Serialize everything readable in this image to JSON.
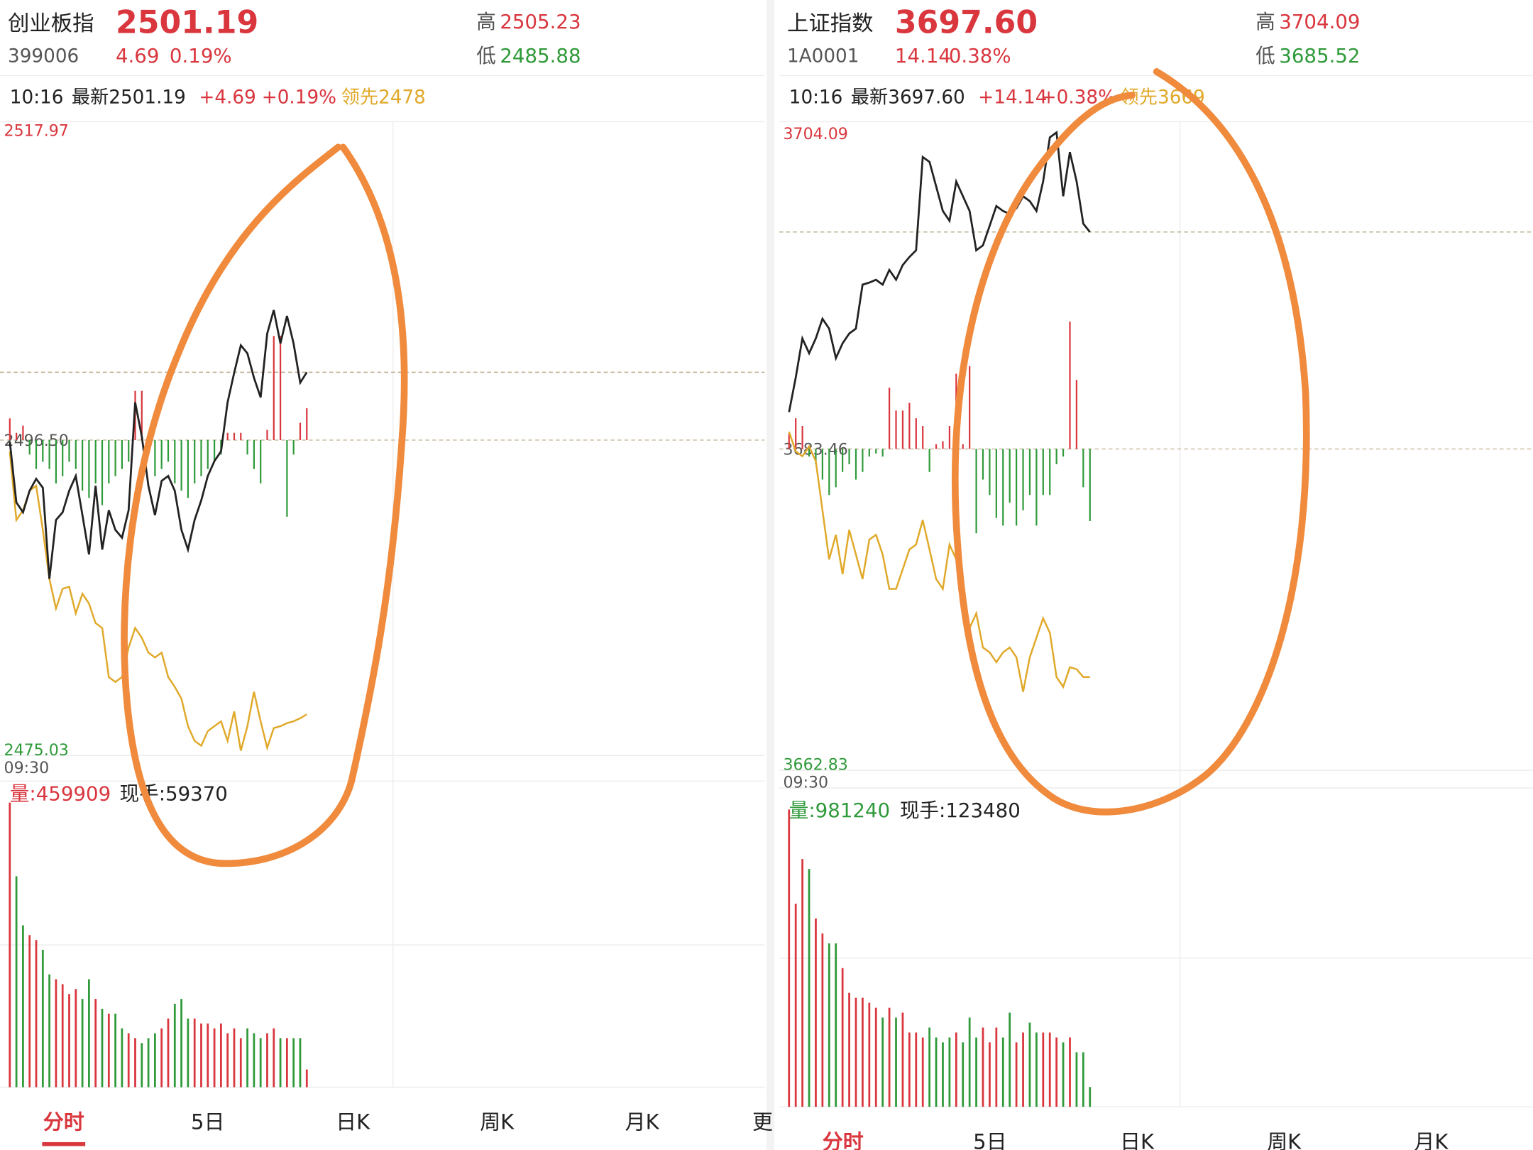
{
  "panels": [
    {
      "name": "创业板指",
      "price": "2501.19",
      "code": "399006",
      "change": "4.69",
      "change_pct": "0.19%",
      "high_label": "高",
      "high": "2505.23",
      "low_label": "低",
      "low": "2485.88",
      "time": "10:16",
      "latest": "最新2501.19",
      "latest_change": "+4.69",
      "latest_pct": "+0.19%",
      "lead": "领先2478",
      "time_start": "09:30",
      "volume": "量:459909",
      "current_hand": "现手:59370",
      "tabs": [
        "分时",
        "5日",
        "日K",
        "周K",
        "月K",
        "更"
      ],
      "chart_data": {
        "type": "line",
        "ylim": [
          2475.03,
          2517.97
        ],
        "yticks": [
          2517.97,
          {
            "value": 2496.5,
            "label": "2496.50"
          },
          2475.03
        ],
        "colors": {
          "price": "#222222",
          "avg": "#e0a92a",
          "up": "#d9363e",
          "down": "#2f9a3a"
        },
        "price_line": [
          2496.4,
          2492.19,
          2491.51,
          2493.0,
          2493.82,
          2493.21,
          2486.9,
          2490.97,
          2491.51,
          2493.0,
          2494.02,
          2491.31,
          2488.6,
          2493.34,
          2488.93,
          2491.65,
          2490.29,
          2489.75,
          2491.65,
          2499.11,
          2496.74,
          2493.34,
          2491.31,
          2493.68,
          2494.02,
          2493.0,
          2490.29,
          2488.93,
          2490.97,
          2492.33,
          2494.02,
          2495.04,
          2495.72,
          2499.11,
          2501.15,
          2503.05,
          2502.5,
          2500.81,
          2499.45,
          2503.86,
          2505.49,
          2503.18,
          2505.08,
          2503.18,
          2500.47,
          2501.19
        ],
        "avg_line": [
          2495.72,
          2490.97,
          2491.65,
          2493.0,
          2493.34,
          2490.29,
          2486.9,
          2484.86,
          2486.22,
          2486.36,
          2484.52,
          2485.88,
          2485.2,
          2483.85,
          2483.51,
          2480.12,
          2479.78,
          2480.12,
          2482.15,
          2483.51,
          2482.83,
          2481.81,
          2481.47,
          2481.81,
          2480.12,
          2479.44,
          2478.62,
          2476.72,
          2475.71,
          2475.37,
          2476.38,
          2476.72,
          2477.06,
          2475.71,
          2477.74,
          2475.03,
          2476.72,
          2479.1,
          2477.06,
          2475.23,
          2476.59,
          2476.72,
          2476.93,
          2477.06,
          2477.27,
          2477.54
        ],
        "flow_bars": [
          1.5,
          0.5,
          1,
          -1,
          -2,
          -1.5,
          -2,
          -3,
          -2.5,
          -1.5,
          -2,
          -3.5,
          -4,
          -3,
          -4.5,
          -3,
          -2.5,
          -2,
          -1.5,
          3.4,
          3.4,
          -1,
          -2.5,
          -2,
          -1.5,
          -3,
          -3.5,
          -4,
          -3,
          -2.5,
          -2,
          -1.5,
          -1,
          0.5,
          0.5,
          0.5,
          -1,
          -2,
          -3,
          0.7,
          7.2,
          7.2,
          -5.3,
          -1,
          1.2,
          2.2
        ],
        "volume_bars": [
          29000,
          21500,
          16500,
          15500,
          15000,
          14000,
          11500,
          11000,
          10500,
          9500,
          10000,
          9000,
          11000,
          9000,
          8000,
          7500,
          7500,
          6000,
          5500,
          5000,
          4500,
          5000,
          5500,
          6000,
          7000,
          8500,
          9000,
          7000,
          7000,
          6500,
          6500,
          6000,
          6500,
          5500,
          6000,
          5000,
          6000,
          5500,
          5000,
          5500,
          6000,
          5000,
          5000,
          5000,
          5000,
          1800
        ]
      }
    },
    {
      "name": "上证指数",
      "price": "3697.60",
      "code": "1A0001",
      "change": "14.14",
      "change_pct": "0.38%",
      "high_label": "高",
      "high": "3704.09",
      "low_label": "低",
      "low": "3685.52",
      "time": "10:16",
      "latest": "最新3697.60",
      "latest_change": "+14.14",
      "latest_pct": "+0.38%",
      "lead": "领先3669",
      "time_start": "09:30",
      "volume": "量:981240",
      "current_hand": "现手:123480",
      "tabs": [
        "分时",
        "5日",
        "日K",
        "周K",
        "月K"
      ],
      "chart_data": {
        "type": "line",
        "ylim": [
          3662.83,
          3704.09
        ],
        "yticks": [
          3704.09,
          3683.46,
          3662.83
        ],
        "colors": {
          "price": "#222222",
          "avg": "#e0a92a",
          "up": "#d9363e",
          "down": "#2f9a3a"
        },
        "price_line": [
          3685.86,
          3688.1,
          3690.66,
          3689.7,
          3690.66,
          3691.94,
          3691.3,
          3689.38,
          3690.34,
          3690.98,
          3691.3,
          3694.17,
          3694.3,
          3694.49,
          3694.17,
          3695.13,
          3694.49,
          3695.45,
          3695.97,
          3696.41,
          3702.49,
          3702.17,
          3700.57,
          3698.97,
          3698.33,
          3700.89,
          3699.93,
          3698.97,
          3696.41,
          3696.73,
          3698.01,
          3699.29,
          3698.97,
          3698.78,
          3699.16,
          3699.93,
          3699.61,
          3698.97,
          3700.89,
          3703.77,
          3704.09,
          3699.93,
          3702.81,
          3700.89,
          3698.14,
          3697.6
        ],
        "avg_line": [
          3684.58,
          3683.3,
          3682.98,
          3683.62,
          3682.66,
          3679.46,
          3676.26,
          3677.86,
          3675.3,
          3678.18,
          3676.58,
          3674.98,
          3677.54,
          3677.86,
          3676.58,
          3674.34,
          3674.34,
          3675.62,
          3676.9,
          3677.22,
          3678.82,
          3676.9,
          3674.98,
          3674.34,
          3677.22,
          3676.26,
          3673.38,
          3671.78,
          3672.74,
          3670.51,
          3670.19,
          3669.55,
          3670.19,
          3670.51,
          3669.87,
          3667.63,
          3669.87,
          3671.15,
          3672.42,
          3671.47,
          3668.59,
          3667.95,
          3669.23,
          3669.1,
          3668.59,
          3668.59
        ],
        "flow_bars": [
          1,
          2,
          1.5,
          -0.5,
          -1,
          -2,
          -3,
          -2.5,
          -1.5,
          -1,
          -2,
          -1.5,
          -0.5,
          -0.3,
          -0.5,
          4,
          2.5,
          2.5,
          3,
          2,
          1.5,
          -1.5,
          0.3,
          0.5,
          1.5,
          4.9,
          0.3,
          5.4,
          -5.5,
          -2,
          -3,
          -4.5,
          -5,
          -3.5,
          -5,
          -4,
          -3,
          -5,
          -3,
          -3,
          -1,
          -0.5,
          8.3,
          4.5,
          -2.5,
          -4.7
        ],
        "volume_bars": [
          30000,
          20500,
          25000,
          24000,
          19000,
          17500,
          16500,
          16500,
          14000,
          11500,
          11000,
          11000,
          10500,
          10000,
          9000,
          10000,
          9000,
          9500,
          7500,
          7500,
          7000,
          8000,
          7000,
          6500,
          7000,
          7500,
          6500,
          9000,
          7000,
          8000,
          6500,
          8000,
          7000,
          9500,
          6500,
          7500,
          8500,
          7500,
          7500,
          7500,
          7000,
          6500,
          7000,
          5500,
          5500,
          2000
        ]
      }
    }
  ]
}
